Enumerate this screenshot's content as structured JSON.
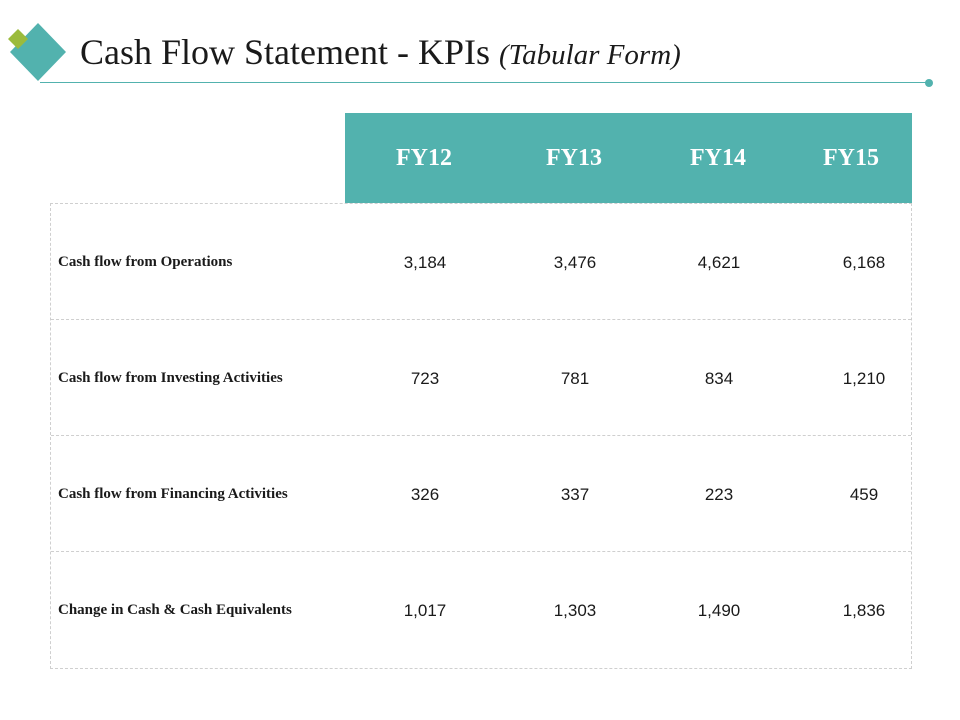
{
  "title": {
    "main": "Cash Flow Statement - KPIs",
    "sub": "(Tabular Form)"
  },
  "colors": {
    "accent": "#52b2ae",
    "accent_secondary": "#9bbb3c"
  },
  "table": {
    "columns": [
      "FY12",
      "FY13",
      "FY14",
      "FY15"
    ],
    "rows": [
      {
        "label": "Cash flow from Operations",
        "values": [
          "3,184",
          "3,476",
          "4,621",
          "6,168"
        ]
      },
      {
        "label": "Cash flow from Investing Activities",
        "values": [
          "723",
          "781",
          "834",
          "1,210"
        ]
      },
      {
        "label": "Cash flow from Financing Activities",
        "values": [
          "326",
          "337",
          "223",
          "459"
        ]
      },
      {
        "label": "Change in Cash & Cash Equivalents",
        "values": [
          "1,017",
          "1,303",
          "1,490",
          "1,836"
        ]
      }
    ]
  }
}
